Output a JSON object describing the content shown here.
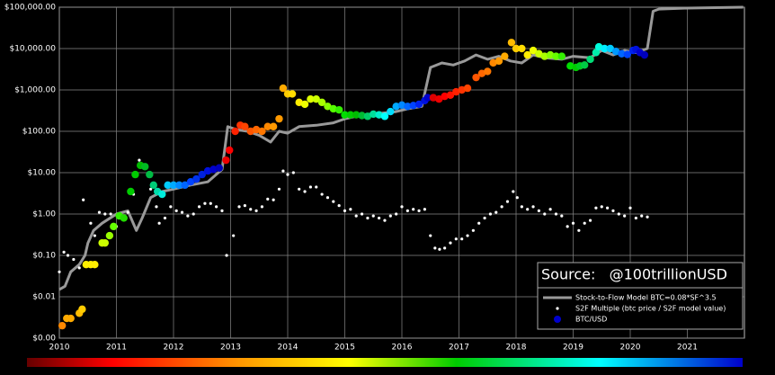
{
  "chart_data": {
    "type": "mixed",
    "annotation": "Source:   @100trillionUSD",
    "xlim": [
      2010,
      2022
    ],
    "xticks": [
      2010,
      2011,
      2012,
      2013,
      2014,
      2015,
      2016,
      2017,
      2018,
      2019,
      2020,
      2021
    ],
    "ylim": [
      0.001,
      100000
    ],
    "yticks": [
      {
        "value": 100000,
        "label": "$100,000.00"
      },
      {
        "value": 10000,
        "label": "$10,000.00"
      },
      {
        "value": 1000,
        "label": "$1,000.00"
      },
      {
        "value": 100,
        "label": "$100.00"
      },
      {
        "value": 10,
        "label": "$10.00"
      },
      {
        "value": 1,
        "label": "$1.00"
      },
      {
        "value": 0.1,
        "label": "$0.10"
      },
      {
        "value": 0.01,
        "label": "$0.01"
      },
      {
        "value": 0.001,
        "label": "$0.00"
      }
    ],
    "log_scale": true,
    "grid": true,
    "legend": "lower right",
    "series": [
      {
        "name": "Stock-to-Flow Model BTC=0.08*SF^3.5",
        "type": "line",
        "color": "#999999",
        "x": [
          2010.0,
          2010.1,
          2010.2,
          2010.35,
          2010.45,
          2010.5,
          2010.6,
          2010.75,
          2011.0,
          2011.2,
          2011.35,
          2011.45,
          2011.6,
          2011.8,
          2012.0,
          2012.3,
          2012.6,
          2012.85,
          2012.95,
          2013.1,
          2013.3,
          2013.5,
          2013.7,
          2013.85,
          2014.0,
          2014.2,
          2014.5,
          2014.8,
          2015.0,
          2015.3,
          2015.6,
          2015.9,
          2016.1,
          2016.35,
          2016.5,
          2016.7,
          2016.9,
          2017.1,
          2017.3,
          2017.5,
          2017.7,
          2017.9,
          2018.1,
          2018.3,
          2018.5,
          2018.8,
          2019.0,
          2019.3,
          2019.5,
          2019.7,
          2019.9,
          2020.1,
          2020.3,
          2020.4,
          2020.5,
          2021.0,
          2021.98
        ],
        "values": [
          0.015,
          0.018,
          0.04,
          0.06,
          0.1,
          0.2,
          0.4,
          0.6,
          1.0,
          1.2,
          0.4,
          0.8,
          2.5,
          3.5,
          4,
          5,
          6,
          12,
          130,
          110,
          100,
          80,
          55,
          100,
          90,
          130,
          140,
          160,
          200,
          250,
          270,
          300,
          350,
          400,
          3500,
          4500,
          4000,
          5000,
          7000,
          5500,
          6500,
          5000,
          4500,
          7000,
          6000,
          5500,
          6500,
          6000,
          9000,
          7000,
          9000,
          8000,
          10000,
          80000,
          90000,
          95000,
          100000
        ]
      },
      {
        "name": "S2F Multiple (btc price / S2F model value)",
        "type": "scatter",
        "color": "#ffffff",
        "x": [
          2010.0,
          2010.08,
          2010.15,
          2010.25,
          2010.35,
          2010.42,
          2010.55,
          2010.62,
          2010.7,
          2010.8,
          2010.9,
          2011.0,
          2011.1,
          2011.2,
          2011.3,
          2011.4,
          2011.5,
          2011.6,
          2011.7,
          2011.75,
          2011.85,
          2011.95,
          2012.05,
          2012.15,
          2012.25,
          2012.35,
          2012.45,
          2012.55,
          2012.65,
          2012.75,
          2012.85,
          2012.93,
          2013.05,
          2013.15,
          2013.25,
          2013.35,
          2013.45,
          2013.55,
          2013.65,
          2013.75,
          2013.85,
          2013.92,
          2014.0,
          2014.1,
          2014.2,
          2014.3,
          2014.4,
          2014.5,
          2014.6,
          2014.7,
          2014.8,
          2014.9,
          2015.0,
          2015.1,
          2015.2,
          2015.3,
          2015.4,
          2015.5,
          2015.6,
          2015.7,
          2015.8,
          2015.9,
          2016.0,
          2016.1,
          2016.2,
          2016.3,
          2016.4,
          2016.5,
          2016.58,
          2016.66,
          2016.75,
          2016.85,
          2016.95,
          2017.05,
          2017.15,
          2017.25,
          2017.35,
          2017.45,
          2017.55,
          2017.65,
          2017.75,
          2017.85,
          2017.95,
          2018.02,
          2018.1,
          2018.2,
          2018.3,
          2018.4,
          2018.5,
          2018.6,
          2018.7,
          2018.8,
          2018.9,
          2019.0,
          2019.1,
          2019.2,
          2019.3,
          2019.4,
          2019.5,
          2019.6,
          2019.7,
          2019.8,
          2019.9,
          2020.0,
          2020.1,
          2020.2,
          2020.3
        ],
        "values": [
          0.04,
          0.12,
          0.1,
          0.08,
          0.05,
          2.2,
          0.6,
          0.3,
          1.1,
          1.0,
          1.0,
          0.5,
          0.8,
          1.1,
          3,
          20,
          15,
          4,
          1.5,
          0.6,
          0.8,
          1.5,
          1.2,
          1.1,
          0.9,
          1.0,
          1.5,
          1.8,
          1.8,
          1.5,
          1.2,
          0.1,
          0.3,
          1.5,
          1.6,
          1.3,
          1.2,
          1.5,
          2.3,
          2.2,
          4,
          11,
          9,
          10,
          4,
          3.5,
          4.5,
          4.5,
          3,
          2.5,
          2,
          1.6,
          1.2,
          1.3,
          0.9,
          1.0,
          0.8,
          0.9,
          0.8,
          0.7,
          0.9,
          1.0,
          1.5,
          1.2,
          1.3,
          1.2,
          1.3,
          0.3,
          0.15,
          0.14,
          0.15,
          0.2,
          0.25,
          0.25,
          0.3,
          0.4,
          0.6,
          0.8,
          1.0,
          1.1,
          1.5,
          2.0,
          3.5,
          2.5,
          1.5,
          1.3,
          1.5,
          1.2,
          1.0,
          1.3,
          1.0,
          0.9,
          0.5,
          0.6,
          0.4,
          0.6,
          0.7,
          1.4,
          1.5,
          1.4,
          1.2,
          1.0,
          0.9,
          1.4,
          0.8,
          0.9,
          0.85
        ]
      },
      {
        "name": "BTC/USD",
        "type": "scatter",
        "color": "#0000cc",
        "x": [
          2010.05,
          2010.13,
          2010.2,
          2010.35,
          2010.4,
          2010.47,
          2010.55,
          2010.62,
          2010.75,
          2010.8,
          2010.88,
          2010.95,
          2011.05,
          2011.13,
          2011.25,
          2011.33,
          2011.42,
          2011.5,
          2011.58,
          2011.65,
          2011.72,
          2011.8,
          2011.9,
          2012.0,
          2012.1,
          2012.2,
          2012.3,
          2012.4,
          2012.5,
          2012.6,
          2012.7,
          2012.8,
          2012.92,
          2012.98,
          2013.08,
          2013.17,
          2013.25,
          2013.35,
          2013.45,
          2013.55,
          2013.65,
          2013.75,
          2013.85,
          2013.92,
          2014.0,
          2014.08,
          2014.2,
          2014.3,
          2014.4,
          2014.5,
          2014.6,
          2014.7,
          2014.8,
          2014.9,
          2015.0,
          2015.1,
          2015.2,
          2015.3,
          2015.4,
          2015.5,
          2015.6,
          2015.7,
          2015.8,
          2015.9,
          2016.0,
          2016.1,
          2016.2,
          2016.3,
          2016.4,
          2016.45,
          2016.55,
          2016.65,
          2016.75,
          2016.85,
          2016.95,
          2017.05,
          2017.15,
          2017.3,
          2017.4,
          2017.5,
          2017.6,
          2017.7,
          2017.8,
          2017.92,
          2018.0,
          2018.1,
          2018.2,
          2018.3,
          2018.4,
          2018.5,
          2018.6,
          2018.7,
          2018.8,
          2018.95,
          2019.05,
          2019.12,
          2019.2,
          2019.3,
          2019.4,
          2019.45,
          2019.55,
          2019.65,
          2019.75,
          2019.85,
          2019.95,
          2020.05,
          2020.1,
          2020.17,
          2020.25
        ],
        "values": [
          0.002,
          0.003,
          0.003,
          0.004,
          0.005,
          0.06,
          0.06,
          0.06,
          0.2,
          0.2,
          0.3,
          0.5,
          0.9,
          0.8,
          3.5,
          9,
          15,
          14,
          9,
          5,
          3.5,
          3,
          5,
          5,
          5,
          5,
          6,
          7,
          9,
          11,
          12,
          13,
          20,
          35,
          100,
          140,
          130,
          100,
          110,
          100,
          130,
          130,
          200,
          1100,
          800,
          800,
          500,
          450,
          600,
          600,
          500,
          400,
          350,
          330,
          250,
          250,
          250,
          240,
          230,
          260,
          250,
          230,
          300,
          400,
          430,
          400,
          420,
          450,
          550,
          650,
          650,
          600,
          700,
          750,
          900,
          1000,
          1100,
          2000,
          2500,
          2800,
          4500,
          5000,
          6500,
          14000,
          10000,
          10000,
          7000,
          9000,
          7500,
          6500,
          7000,
          6500,
          6500,
          3800,
          3500,
          3800,
          4000,
          5500,
          8000,
          11000,
          10000,
          10000,
          8500,
          7500,
          7200,
          9000,
          9500,
          8000,
          7000
        ],
        "colors": [
          "#ff8800",
          "#ffaa00",
          "#ffaa00",
          "#ffbb00",
          "#ffcc00",
          "#ffee00",
          "#ffee00",
          "#ffee00",
          "#ccff00",
          "#ccff00",
          "#99ff00",
          "#66ff00",
          "#33ee00",
          "#22dd00",
          "#00cc00",
          "#00cc00",
          "#00bb00",
          "#00bb22",
          "#00bb44",
          "#00cc77",
          "#00ddaa",
          "#00eedd",
          "#00ccff",
          "#00aaff",
          "#0088ff",
          "#0066ff",
          "#0044ff",
          "#0033ee",
          "#0022dd",
          "#0011dd",
          "#0000cc",
          "#0000bb",
          "#ee0000",
          "#ff0000",
          "#ff2200",
          "#ff3300",
          "#ff4400",
          "#ff5500",
          "#ff6600",
          "#ff7700",
          "#ff8800",
          "#ff9900",
          "#ff9900",
          "#ffaa00",
          "#ffcc00",
          "#ffdd00",
          "#ffee00",
          "#eeff00",
          "#ddff00",
          "#ccff00",
          "#aaff00",
          "#88ff00",
          "#55ff00",
          "#33ee00",
          "#00dd00",
          "#00cc00",
          "#00bb00",
          "#00bb33",
          "#00cc66",
          "#00dd99",
          "#00eecc",
          "#00ffff",
          "#00ddff",
          "#00aaff",
          "#0088ff",
          "#0066ff",
          "#0044ff",
          "#0022ee",
          "#0011dd",
          "#0000cc",
          "#dd0000",
          "#ee0000",
          "#ff0000",
          "#ff1100",
          "#ff2200",
          "#ff3300",
          "#ff4400",
          "#ff5500",
          "#ff6600",
          "#ff7700",
          "#ff8800",
          "#ff9900",
          "#ffaa00",
          "#ffbb00",
          "#ffcc00",
          "#ffdd00",
          "#ffee00",
          "#eeff00",
          "#ccff00",
          "#aaff00",
          "#88ff00",
          "#66ff00",
          "#33ee00",
          "#00dd00",
          "#00cc00",
          "#00cc22",
          "#00cc44",
          "#00dd77",
          "#00eeaa",
          "#00ffdd",
          "#00eeff",
          "#00ccff",
          "#0099ff",
          "#0066ff",
          "#0044ff",
          "#0022ee",
          "#0011dd",
          "#0000cc",
          "#0000bb"
        ]
      }
    ]
  }
}
